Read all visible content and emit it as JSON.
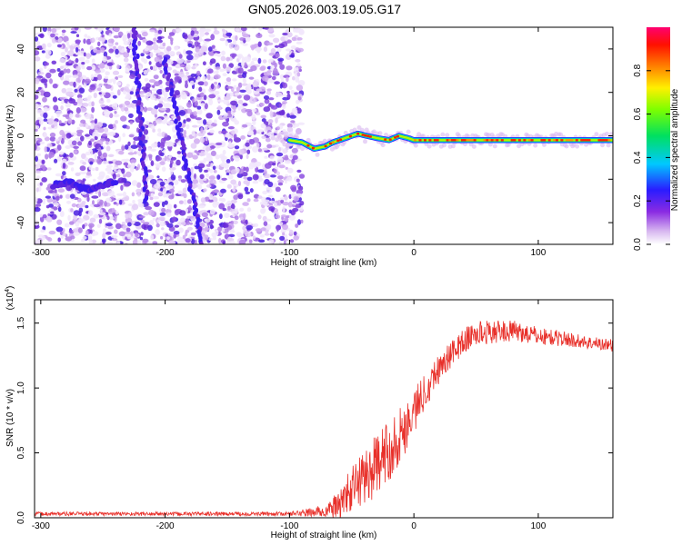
{
  "chart_data": [
    {
      "type": "heatmap",
      "title": "GN05.2026.003.19.05.G17",
      "xlabel": "Height of straight line (km)",
      "ylabel": "Frequency (Hz)",
      "xlim": [
        -305,
        160
      ],
      "ylim": [
        -50,
        50
      ],
      "xticks": [
        -300,
        -200,
        -100,
        0,
        100
      ],
      "yticks": [
        -40,
        -20,
        0,
        20,
        40
      ],
      "colorbar": {
        "label": "Normalized spectral amplitude",
        "range": [
          0,
          1
        ],
        "ticks": [
          0.0,
          0.2,
          0.4,
          0.6,
          0.8
        ]
      },
      "noise_region_x": [
        -305,
        -90
      ],
      "diagonal_stripes": [
        {
          "x_start": -200,
          "y_start": 35,
          "x_end": -170,
          "y_end": -50
        },
        {
          "x_start": -225,
          "y_start": 50,
          "x_end": -215,
          "y_end": -30
        }
      ],
      "blob": {
        "x_start": -290,
        "x_end": -240,
        "y_center": -23
      },
      "signal_track": {
        "x": [
          -100,
          -90,
          -80,
          -72,
          -65,
          -55,
          -45,
          -38,
          -30,
          -20,
          -12,
          -5,
          0,
          20,
          40,
          60,
          80,
          100,
          120,
          140,
          160
        ],
        "freq": [
          -2,
          -3,
          -6,
          -5,
          -3,
          -1,
          1,
          0,
          -1,
          -2,
          0,
          -1,
          -2,
          -2,
          -2,
          -2,
          -2,
          -2,
          -2,
          -2,
          -2
        ]
      }
    },
    {
      "type": "line",
      "xlabel": "Height of straight line (km)",
      "ylabel": "SNR (10 * v/v)",
      "multiplier_label": "(x10",
      "multiplier_exp": "4",
      "xlim": [
        -305,
        160
      ],
      "ylim": [
        0,
        1.68
      ],
      "xticks": [
        -300,
        -200,
        -100,
        0,
        100
      ],
      "yticks": [
        0.0,
        0.5,
        1.0,
        1.5
      ],
      "series": [
        {
          "name": "SNR",
          "color": "#e8302a",
          "x": [
            -305,
            -250,
            -200,
            -150,
            -100,
            -70,
            -60,
            -50,
            -40,
            -30,
            -20,
            -10,
            0,
            10,
            20,
            30,
            40,
            50,
            60,
            80,
            100,
            120,
            140,
            160
          ],
          "mean": [
            0.03,
            0.03,
            0.03,
            0.03,
            0.03,
            0.05,
            0.1,
            0.22,
            0.32,
            0.4,
            0.52,
            0.65,
            0.82,
            1.0,
            1.15,
            1.26,
            1.36,
            1.42,
            1.43,
            1.44,
            1.4,
            1.38,
            1.35,
            1.33
          ],
          "spread": [
            0.015,
            0.015,
            0.015,
            0.015,
            0.015,
            0.05,
            0.12,
            0.18,
            0.22,
            0.24,
            0.24,
            0.22,
            0.18,
            0.14,
            0.12,
            0.1,
            0.1,
            0.1,
            0.09,
            0.08,
            0.07,
            0.06,
            0.05,
            0.05
          ]
        }
      ]
    }
  ]
}
